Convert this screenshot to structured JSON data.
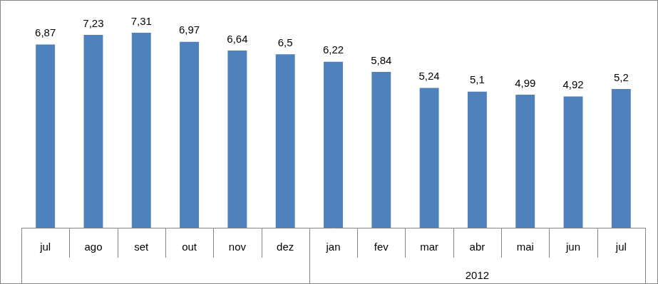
{
  "chart_data": {
    "type": "bar",
    "categories": [
      "jul",
      "ago",
      "set",
      "out",
      "nov",
      "dez",
      "jan",
      "fev",
      "mar",
      "abr",
      "mai",
      "jun",
      "jul"
    ],
    "values": [
      6.87,
      7.23,
      7.31,
      6.97,
      6.64,
      6.5,
      6.22,
      5.84,
      5.24,
      5.1,
      4.99,
      4.92,
      5.2
    ],
    "value_labels": [
      "6,87",
      "7,23",
      "7,31",
      "6,97",
      "6,64",
      "6,5",
      "6,22",
      "5,84",
      "5,24",
      "5,1",
      "4,99",
      "4,92",
      "5,2"
    ],
    "color": "#4f81bd",
    "ylim": [
      0,
      8
    ],
    "grid": false,
    "data_labels": true,
    "tick_labels": "x",
    "category_groups": [
      {
        "label": "2012",
        "start": 6,
        "end": 12
      }
    ]
  }
}
